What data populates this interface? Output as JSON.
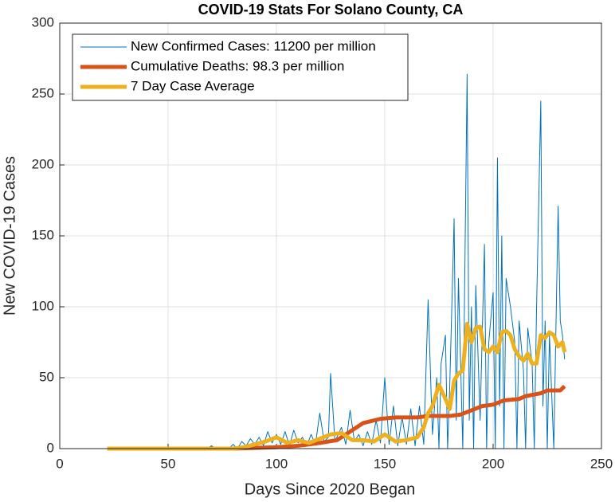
{
  "chart_data": {
    "type": "line",
    "title": "COVID-19 Stats For Solano County, CA",
    "xlabel": "Days Since 2020 Began",
    "ylabel": "New COVID-19 Cases",
    "xlim": [
      0,
      250
    ],
    "xticks": [
      0,
      50,
      100,
      150,
      200,
      250
    ],
    "ylim": [
      0,
      300
    ],
    "yticks": [
      0,
      50,
      100,
      150,
      200,
      250,
      300
    ],
    "grid": true,
    "legend": "upper left",
    "series": [
      {
        "name": "New Confirmed Cases: 11200 per million",
        "color": "#0072BD",
        "width": 1,
        "x": [
          22,
          68,
          70,
          72,
          75,
          78,
          80,
          82,
          84,
          86,
          88,
          90,
          92,
          94,
          96,
          98,
          100,
          102,
          104,
          106,
          108,
          110,
          112,
          114,
          116,
          118,
          120,
          122,
          124,
          125,
          127,
          130,
          132,
          134,
          136,
          138,
          140,
          142,
          144,
          146,
          148,
          150,
          152,
          154,
          156,
          158,
          160,
          162,
          164,
          166,
          168,
          170,
          172,
          174,
          175,
          176,
          178,
          179,
          180,
          182,
          183,
          184,
          186,
          188,
          189,
          190,
          191,
          192,
          194,
          196,
          197,
          198,
          200,
          201,
          202,
          203,
          204,
          205,
          206,
          208,
          210,
          211,
          212,
          214,
          215,
          216,
          218,
          219,
          220,
          222,
          223,
          224,
          225,
          226,
          228,
          230,
          231,
          232,
          233
        ],
        "values": [
          0,
          0,
          2,
          0,
          1,
          0,
          3,
          0,
          5,
          2,
          7,
          3,
          8,
          2,
          12,
          4,
          10,
          3,
          12,
          2,
          13,
          4,
          8,
          2,
          10,
          3,
          25,
          5,
          8,
          53,
          5,
          15,
          3,
          27,
          5,
          10,
          2,
          12,
          3,
          20,
          4,
          50,
          3,
          30,
          2,
          22,
          3,
          28,
          2,
          30,
          3,
          105,
          10,
          50,
          0,
          60,
          80,
          0,
          45,
          162,
          20,
          120,
          0,
          264,
          20,
          100,
          0,
          115,
          20,
          144,
          0,
          75,
          110,
          0,
          205,
          30,
          150,
          0,
          120,
          100,
          75,
          0,
          90,
          55,
          0,
          85,
          60,
          0,
          95,
          245,
          30,
          90,
          0,
          80,
          0,
          171,
          90,
          80,
          63
        ]
      },
      {
        "name": "Cumulative Deaths: 98.3 per million",
        "color": "#D95319",
        "width": 5,
        "x": [
          22,
          80,
          100,
          110,
          120,
          128,
          135,
          140,
          148,
          155,
          165,
          170,
          180,
          185,
          190,
          195,
          200,
          205,
          212,
          215,
          222,
          225,
          231,
          233
        ],
        "values": [
          0,
          0,
          1,
          2,
          4,
          6,
          13,
          18,
          21,
          22,
          22,
          23,
          23,
          24,
          27,
          30,
          31,
          34,
          35,
          37,
          39,
          41,
          41,
          44
        ]
      },
      {
        "name": "7 Day Case Average",
        "color": "#EDB120",
        "width": 5,
        "x": [
          22,
          80,
          85,
          95,
          100,
          105,
          110,
          115,
          120,
          125,
          130,
          135,
          140,
          145,
          150,
          155,
          160,
          165,
          168,
          170,
          172,
          175,
          178,
          180,
          182,
          184,
          186,
          188,
          190,
          192,
          194,
          196,
          198,
          200,
          202,
          204,
          206,
          208,
          210,
          212,
          214,
          216,
          218,
          220,
          222,
          224,
          226,
          228,
          230,
          232,
          233
        ],
        "values": [
          0,
          0,
          1,
          5,
          8,
          4,
          6,
          4,
          7,
          10,
          11,
          6,
          6,
          5,
          10,
          5,
          6,
          8,
          15,
          25,
          30,
          45,
          35,
          28,
          48,
          53,
          55,
          88,
          75,
          85,
          86,
          70,
          68,
          72,
          68,
          82,
          83,
          80,
          70,
          65,
          62,
          67,
          60,
          60,
          80,
          78,
          82,
          80,
          72,
          75,
          68
        ]
      }
    ]
  }
}
